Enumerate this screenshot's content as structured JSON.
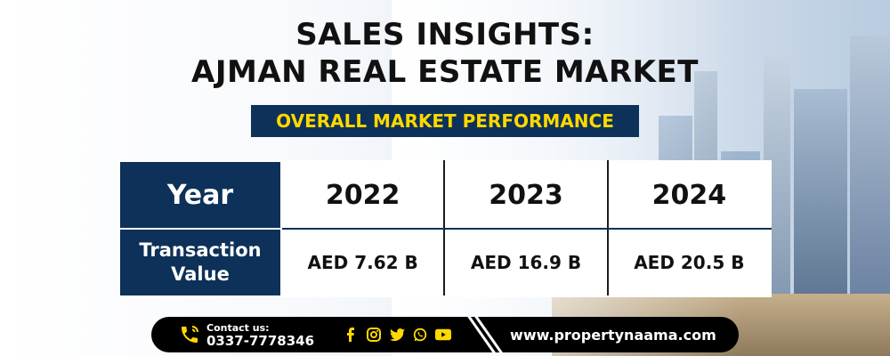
{
  "title": {
    "line1": "SALES INSIGHTS:",
    "line2": "AJMAN REAL ESTATE MARKET"
  },
  "subtitle": "OVERALL MARKET PERFORMANCE",
  "table": {
    "row_headers": [
      "Year",
      "Transaction Value"
    ],
    "row_header_value_lines": [
      "Transaction",
      "Value"
    ],
    "years": [
      "2022",
      "2023",
      "2024"
    ],
    "values": [
      "AED 7.62 B",
      "AED 16.9 B",
      "AED 20.5 B"
    ]
  },
  "footer": {
    "contact_label": "Contact us:",
    "phone": "0337-7778346",
    "social_icons": [
      "facebook-icon",
      "instagram-icon",
      "twitter-icon",
      "whatsapp-icon",
      "youtube-icon"
    ],
    "website": "www.propertynaama.com"
  },
  "colors": {
    "navy": "#0d3158",
    "accent_yellow": "#ffd800",
    "footer_bg": "#000000"
  }
}
